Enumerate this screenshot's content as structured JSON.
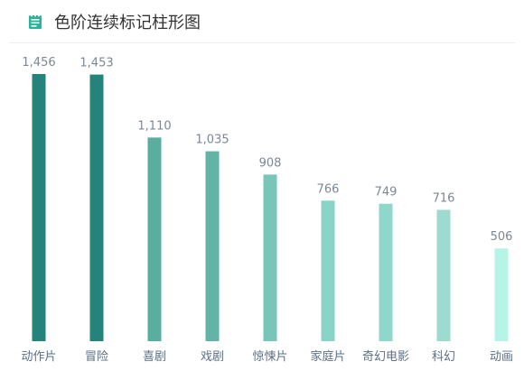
{
  "header": {
    "title": "色阶连续标记柱形图",
    "icon": "notepad-icon",
    "icon_color": "#29b39d"
  },
  "chart_data": {
    "type": "bar",
    "categories": [
      "动作片",
      "冒险",
      "喜剧",
      "戏剧",
      "惊悚片",
      "家庭片",
      "奇幻电影",
      "科幻",
      "动画"
    ],
    "values": [
      1456,
      1453,
      1110,
      1035,
      908,
      766,
      749,
      716,
      506
    ],
    "value_labels": [
      "1,456",
      "1,453",
      "1,110",
      "1,035",
      "908",
      "766",
      "749",
      "716",
      "506"
    ],
    "colors": [
      "#24837a",
      "#24837a",
      "#5aaea0",
      "#63b4a7",
      "#78c6b8",
      "#89d4c7",
      "#8ed7ca",
      "#9ddbd0",
      "#b7f4e8"
    ],
    "title": "色阶连续标记柱形图",
    "xlabel": "",
    "ylabel": "",
    "grid": false,
    "legend": "none"
  }
}
